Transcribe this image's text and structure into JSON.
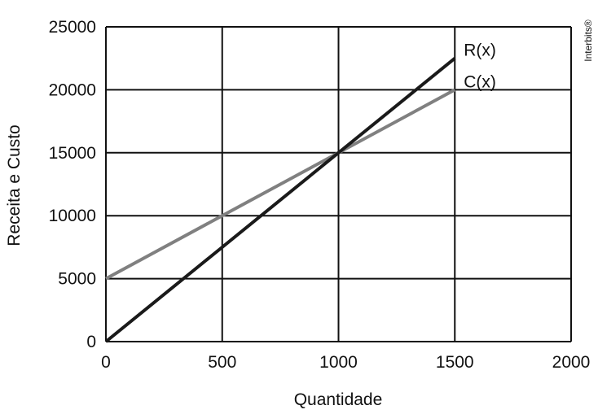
{
  "chart_data": {
    "type": "line",
    "xlabel": "Quantidade",
    "ylabel": "Receita e Custo",
    "xlim": [
      0,
      2000
    ],
    "ylim": [
      0,
      25000
    ],
    "x_ticks": [
      "0",
      "500",
      "1000",
      "1500",
      "2000"
    ],
    "y_ticks": [
      "0",
      "5000",
      "10000",
      "15000",
      "20000",
      "25000"
    ],
    "grid": true,
    "series": [
      {
        "name": "R(x)",
        "color": "#1a1a1a",
        "x": [
          0,
          1500
        ],
        "y": [
          0,
          22500
        ]
      },
      {
        "name": "C(x)",
        "color": "#808080",
        "x": [
          0,
          1500
        ],
        "y": [
          5000,
          20000
        ]
      }
    ]
  },
  "credit": "Interbits®"
}
